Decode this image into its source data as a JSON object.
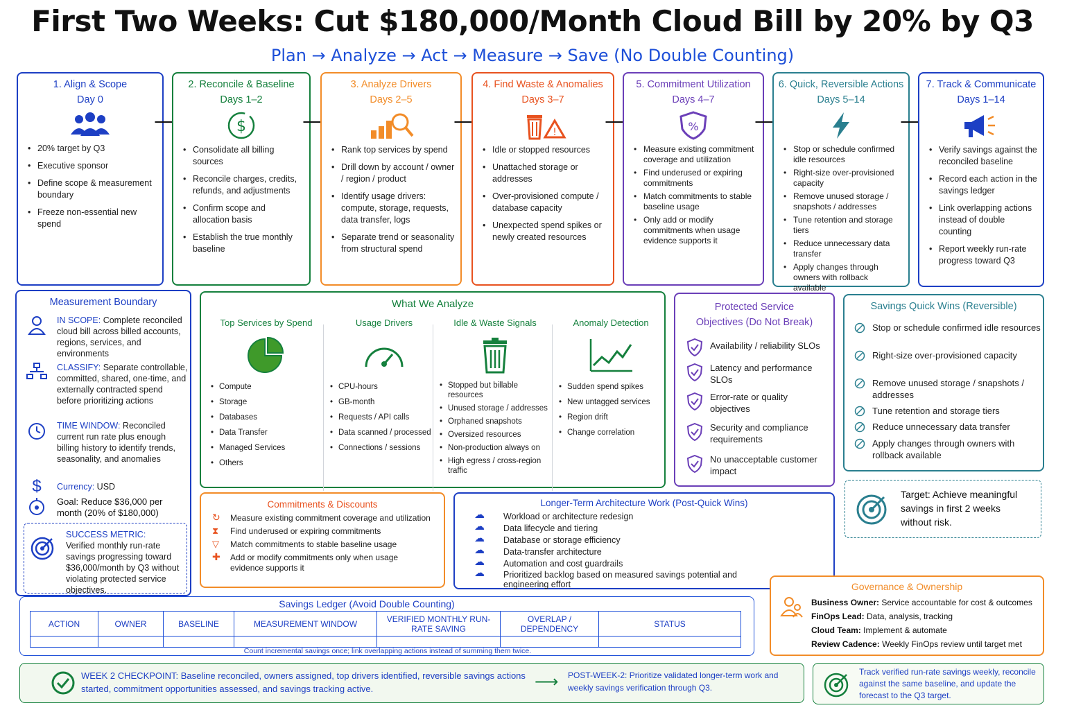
{
  "title": "First Two Weeks: Cut $180,000/Month Cloud Bill by 20% by Q3",
  "subtitle": "Plan → Analyze → Act → Measure → Save (No Double Counting)",
  "colors": {
    "blue": "#1d3fc4",
    "green": "#15803d",
    "orange": "#f28c28",
    "red": "#e8521f",
    "purple": "#6b3fb8",
    "teal": "#2a7f8f"
  },
  "phases": [
    {
      "title": "1. Align & Scope",
      "days": "Day 0",
      "icon": "team-icon",
      "items": [
        "20% target by Q3",
        "Executive sponsor",
        "Define scope & measurement boundary",
        "Freeze non-essential new spend"
      ]
    },
    {
      "title": "2. Reconcile & Baseline",
      "days": "Days 1–2",
      "icon": "dollar-icon",
      "items": [
        "Consolidate all billing sources",
        "Reconcile charges, credits, refunds, and adjustments",
        "Confirm scope and allocation basis",
        "Establish the true monthly baseline"
      ]
    },
    {
      "title": "3. Analyze Drivers",
      "days": "Days 2–5",
      "icon": "chart-search-icon",
      "items": [
        "Rank top services by spend",
        "Drill down by account / owner / region / product",
        "Identify usage drivers: compute, storage, requests, data transfer, logs",
        "Separate trend or seasonality from structural spend"
      ]
    },
    {
      "title": "4. Find Waste & Anomalies",
      "days": "Days 3–7",
      "icon": "trash-warning-icon",
      "items": [
        "Idle or stopped resources",
        "Unattached storage or addresses",
        "Over-provisioned compute / database capacity",
        "Unexpected spend spikes or newly created resources"
      ]
    },
    {
      "title": "5. Commitment Utilization",
      "days": "Days 4–7",
      "icon": "shield-percent-icon",
      "items": [
        "Measure existing commitment coverage and utilization",
        "Find underused or expiring commitments",
        "Match commitments to stable baseline usage",
        "Only add or modify commitments when usage evidence supports it"
      ]
    },
    {
      "title": "6. Quick, Reversible Actions",
      "days": "Days 5–14",
      "icon": "lightning-icon",
      "items": [
        "Stop or schedule confirmed idle resources",
        "Right-size over-provisioned capacity",
        "Remove unused storage / snapshots / addresses",
        "Tune retention and storage tiers",
        "Reduce unnecessary data transfer",
        "Apply changes through owners with rollback available"
      ]
    },
    {
      "title": "7. Track & Communicate",
      "days": "Days 1–14",
      "icon": "megaphone-icon",
      "items": [
        "Verify savings against the reconciled baseline",
        "Record each action in the savings ledger",
        "Link overlapping actions instead of double counting",
        "Report weekly run-rate progress toward Q3"
      ]
    }
  ],
  "measurement_boundary": {
    "title": "Measurement Boundary",
    "rows": [
      {
        "label": "IN SCOPE:",
        "text": "Complete reconciled cloud bill across billed accounts, regions, services, and environments"
      },
      {
        "label": "CLASSIFY:",
        "text": "Separate controllable, committed, shared, one-time, and externally contracted spend before prioritizing actions"
      },
      {
        "label": "TIME WINDOW:",
        "text": "Reconciled current run rate plus enough billing history to identify trends, seasonality, and anomalies"
      },
      {
        "label": "Currency:",
        "text": "USD"
      },
      {
        "label": "Goal:",
        "text": "Reduce $36,000 per month (20% of $180,000)"
      }
    ],
    "success": {
      "label": "SUCCESS METRIC:",
      "text": "Verified monthly run-rate savings progressing toward $36,000/month by Q3 without violating protected service objectives."
    }
  },
  "analyze": {
    "title": "What We Analyze",
    "columns": [
      {
        "title": "Top Services by Spend",
        "items": [
          "Compute",
          "Storage",
          "Databases",
          "Data Transfer",
          "Managed Services",
          "Others"
        ]
      },
      {
        "title": "Usage Drivers",
        "items": [
          "CPU-hours",
          "GB-month",
          "Requests / API calls",
          "Data scanned / processed",
          "Connections / sessions"
        ]
      },
      {
        "title": "Idle & Waste Signals",
        "items": [
          "Stopped but billable resources",
          "Unused storage / addresses",
          "Orphaned snapshots",
          "Oversized resources",
          "Non-production always on",
          "High egress / cross-region traffic"
        ]
      },
      {
        "title": "Anomaly Detection",
        "items": [
          "Sudden spend spikes",
          "New untagged services",
          "Region drift",
          "Change correlation"
        ]
      }
    ]
  },
  "pso": {
    "title": "Protected Service Objectives (Do Not Break)",
    "items": [
      "Availability / reliability SLOs",
      "Latency and performance SLOs",
      "Error-rate or quality objectives",
      "Security and compliance requirements",
      "No unacceptable customer impact"
    ]
  },
  "quick_wins": {
    "title": "Savings Quick Wins (Reversible)",
    "items": [
      "Stop or schedule confirmed idle resources",
      "Right-size over-provisioned capacity",
      "Remove unused storage / snapshots / addresses",
      "Tune retention and storage tiers",
      "Reduce unnecessary data transfer",
      "Apply changes through owners with rollback available"
    ]
  },
  "target": "Target: Achieve meaningful savings in first 2 weeks without risk.",
  "commitments": {
    "title": "Commitments & Discounts",
    "items": [
      "Measure existing commitment coverage and utilization",
      "Find underused or expiring commitments",
      "Match commitments to stable baseline usage",
      "Add or modify commitments only when usage evidence supports it"
    ]
  },
  "longterm": {
    "title": "Longer-Term Architecture Work (Post-Quick Wins)",
    "items": [
      "Workload or architecture redesign",
      "Data lifecycle and tiering",
      "Database or storage efficiency",
      "Data-transfer architecture",
      "Automation and cost guardrails",
      "Prioritized backlog based on measured savings potential and engineering effort"
    ]
  },
  "ledger": {
    "title": "Savings Ledger (Avoid Double Counting)",
    "columns": [
      "ACTION",
      "OWNER",
      "BASELINE",
      "MEASUREMENT WINDOW",
      "VERIFIED MONTHLY RUN-RATE SAVING",
      "OVERLAP / DEPENDENCY",
      "STATUS"
    ],
    "note": "Count incremental savings once; link overlapping actions instead of summing them twice."
  },
  "governance": {
    "title": "Governance & Ownership",
    "rows": [
      {
        "label": "Business Owner:",
        "text": "Service accountable for cost & outcomes"
      },
      {
        "label": "FinOps Lead:",
        "text": "Data, analysis, tracking"
      },
      {
        "label": "Cloud Team:",
        "text": "Implement & automate"
      },
      {
        "label": "Review Cadence:",
        "text": "Weekly FinOps review until target met"
      }
    ]
  },
  "checkpoint": {
    "label": "WEEK 2 CHECKPOINT:",
    "text": "Baseline reconciled, owners assigned, top drivers identified, reversible savings actions started, commitment opportunities assessed, and savings tracking active.",
    "post_label": "POST-WEEK-2:",
    "post_text": "Prioritize validated longer-term work and weekly savings verification through Q3."
  },
  "track_note": "Track verified run-rate savings weekly, reconcile against the same baseline, and update the forecast to the Q3 target."
}
